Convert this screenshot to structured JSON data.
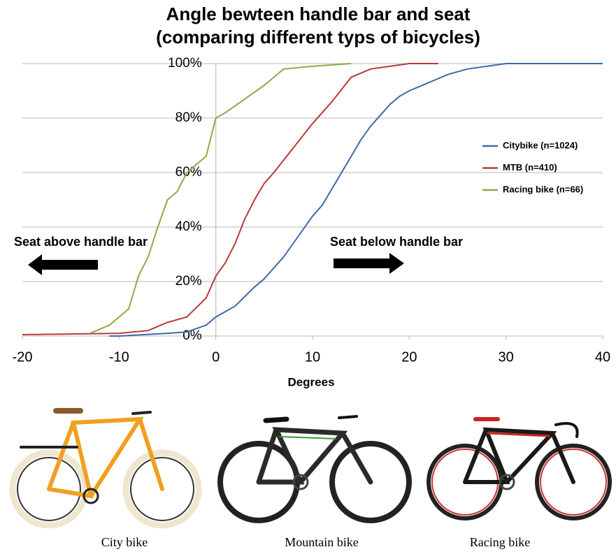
{
  "chart_data": {
    "type": "line",
    "title": "Angle bewteen handle bar and seat",
    "subtitle": "(comparing different typs of bicycles)",
    "x_label": "Degrees",
    "annotations": [
      "Seat above handle bar",
      "Seat below handle bar"
    ],
    "xlim": [
      -20,
      40
    ],
    "xticks": [
      -20,
      -10,
      0,
      10,
      20,
      30,
      40
    ],
    "ylim": [
      0,
      100
    ],
    "yticks": [
      {
        "value": 0,
        "label": "0%"
      },
      {
        "value": 20,
        "label": "20%"
      },
      {
        "value": 40,
        "label": "40%"
      },
      {
        "value": 60,
        "label": "60%"
      },
      {
        "value": 80,
        "label": "80%"
      },
      {
        "value": 100,
        "label": "100%"
      }
    ],
    "grid": true,
    "legend": "right",
    "series": [
      {
        "name": "Citybike (n=1024)",
        "color": "#3d6aa8",
        "x": [
          -11,
          -10,
          -5,
          -3,
          -1,
          0,
          2,
          4,
          5,
          7,
          8,
          9,
          10,
          11,
          12,
          13,
          14,
          15,
          16,
          17,
          18,
          19,
          20,
          22,
          24,
          26,
          28,
          30,
          40
        ],
        "values": [
          0,
          0,
          1,
          1.5,
          4,
          7,
          11,
          18,
          21,
          29,
          34,
          39,
          44,
          48,
          54,
          60,
          66,
          72,
          77,
          81,
          85,
          88,
          90,
          93,
          96,
          98,
          99,
          100,
          100
        ]
      },
      {
        "name": "MTB (n=410)",
        "color": "#b83a37",
        "x": [
          -20,
          -10,
          -7,
          -5,
          -3,
          -1,
          0,
          1,
          2,
          3,
          4,
          5,
          6,
          8,
          10,
          12,
          14,
          16,
          18,
          20,
          23
        ],
        "values": [
          0.5,
          1,
          2,
          5,
          7,
          14,
          22,
          27,
          34,
          43,
          50,
          56,
          60,
          69,
          78,
          86,
          95,
          98,
          99,
          100,
          100
        ]
      },
      {
        "name": "Racing bike (n=66)",
        "color": "#8aac46",
        "x": [
          -13,
          -11,
          -9,
          -8,
          -7,
          -6,
          -5,
          -4,
          -3,
          -2,
          -1,
          0,
          1,
          3,
          5,
          6,
          7,
          10,
          14
        ],
        "values": [
          1,
          4,
          10,
          22,
          29,
          40,
          50,
          53,
          60,
          63,
          66,
          80,
          82,
          87,
          92,
          95,
          98,
          99,
          100
        ]
      }
    ]
  },
  "photos": [
    "City bike",
    "Mountain bike",
    "Racing bike"
  ]
}
